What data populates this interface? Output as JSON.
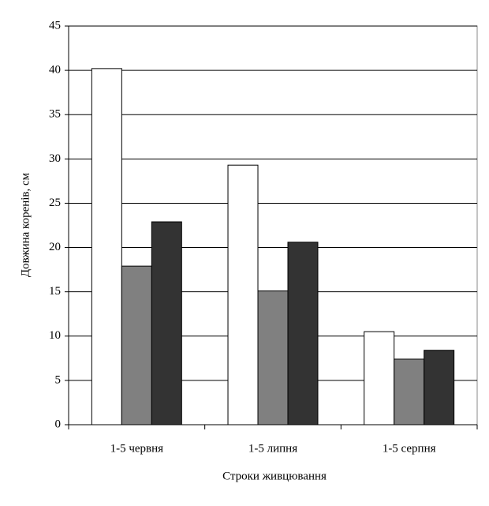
{
  "chart_data": {
    "type": "bar",
    "x_label": "Строки живцювання",
    "y_label": "Довжина коренів, см",
    "categories": [
      "1-5 червня",
      "1-5 липня",
      "1-5 серпня"
    ],
    "series": [
      {
        "color": "#ffffff",
        "values": [
          40.2,
          29.3,
          10.5
        ]
      },
      {
        "color": "#808080",
        "values": [
          17.9,
          15.1,
          7.4
        ]
      },
      {
        "color": "#333333",
        "values": [
          22.9,
          20.6,
          8.4
        ]
      }
    ],
    "ylim": [
      0,
      45
    ],
    "yticks": [
      0,
      5,
      10,
      15,
      20,
      25,
      30,
      35,
      40,
      45
    ],
    "grid": true
  }
}
